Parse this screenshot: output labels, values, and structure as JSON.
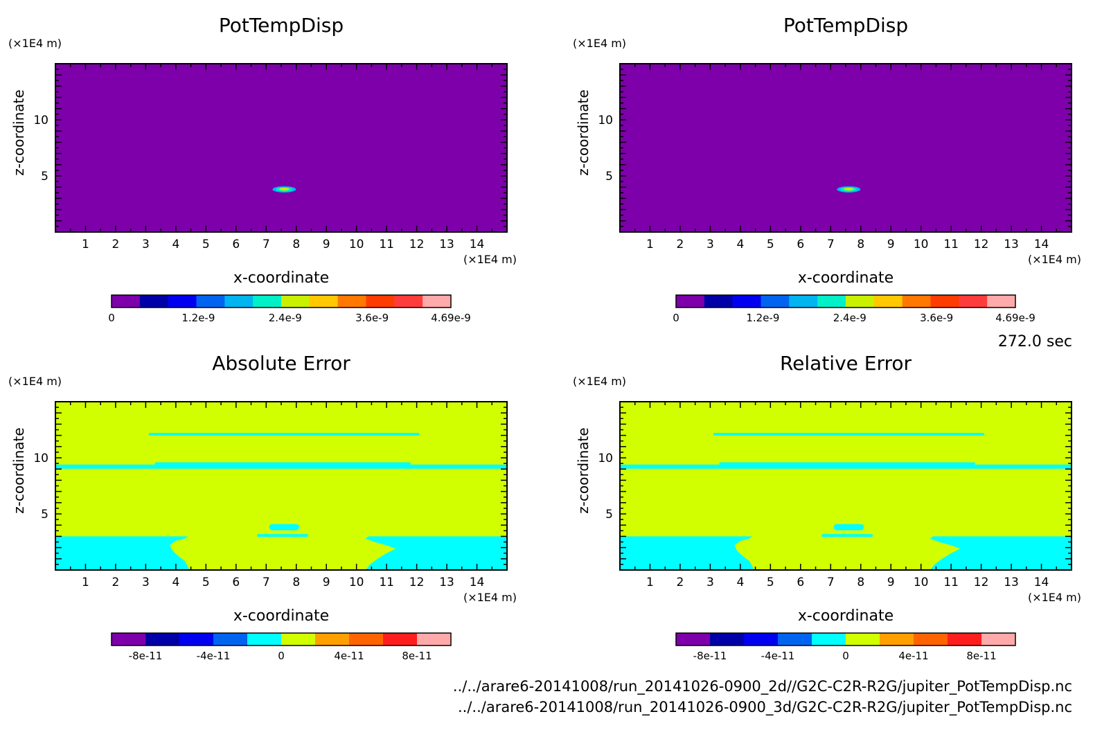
{
  "chart_data": [
    {
      "type": "heatmap",
      "title": "PotTempDisp",
      "xlabel": "x-coordinate",
      "ylabel": "z-coordinate",
      "x_unit": "(×1E4 m)",
      "y_unit": "(×1E4 m)",
      "xlim": [
        0,
        15
      ],
      "ylim": [
        0,
        15
      ],
      "x_ticks": [
        "1",
        "2",
        "3",
        "4",
        "5",
        "6",
        "7",
        "8",
        "9",
        "10",
        "11",
        "12",
        "13",
        "14"
      ],
      "y_ticks": [
        "5",
        "10"
      ],
      "background_value": 0,
      "features": [
        {
          "kind": "blob",
          "x": 7.6,
          "z": 3.8,
          "value_class": "mid"
        }
      ],
      "colorbar": {
        "colors": [
          "#7d00aa",
          "#0000a8",
          "#0000f0",
          "#0064f0",
          "#00b4f0",
          "#00f0c8",
          "#c8f000",
          "#ffc800",
          "#ff7800",
          "#ff3c00",
          "#ff3c3c",
          "#ffaaaa"
        ],
        "labels": [
          "0",
          "1.2e-9",
          "2.4e-9",
          "3.6e-9",
          "4.69e-9"
        ],
        "range": [
          0,
          4.69e-09
        ]
      }
    },
    {
      "type": "heatmap",
      "title": "PotTempDisp",
      "xlabel": "x-coordinate",
      "ylabel": "z-coordinate",
      "x_unit": "(×1E4 m)",
      "y_unit": "(×1E4 m)",
      "xlim": [
        0,
        15
      ],
      "ylim": [
        0,
        15
      ],
      "x_ticks": [
        "1",
        "2",
        "3",
        "4",
        "5",
        "6",
        "7",
        "8",
        "9",
        "10",
        "11",
        "12",
        "13",
        "14"
      ],
      "y_ticks": [
        "5",
        "10"
      ],
      "background_value": 0,
      "features": [
        {
          "kind": "blob",
          "x": 7.6,
          "z": 3.8,
          "value_class": "mid"
        }
      ],
      "colorbar": {
        "colors": [
          "#7d00aa",
          "#0000a8",
          "#0000f0",
          "#0064f0",
          "#00b4f0",
          "#00f0c8",
          "#c8f000",
          "#ffc800",
          "#ff7800",
          "#ff3c00",
          "#ff3c3c",
          "#ffaaaa"
        ],
        "labels": [
          "0",
          "1.2e-9",
          "2.4e-9",
          "3.6e-9",
          "4.69e-9"
        ],
        "range": [
          0,
          4.69e-09
        ]
      }
    },
    {
      "type": "heatmap",
      "title": "Absolute Error",
      "xlabel": "x-coordinate",
      "ylabel": "z-coordinate",
      "x_unit": "(×1E4 m)",
      "y_unit": "(×1E4 m)",
      "xlim": [
        0,
        15
      ],
      "ylim": [
        0,
        15
      ],
      "x_ticks": [
        "1",
        "2",
        "3",
        "4",
        "5",
        "6",
        "7",
        "8",
        "9",
        "10",
        "11",
        "12",
        "13",
        "14"
      ],
      "y_ticks": [
        "5",
        "10"
      ],
      "background_value": 0,
      "colorbar": {
        "colors": [
          "#7d00aa",
          "#0000a8",
          "#0000f0",
          "#0064f0",
          "#00ffff",
          "#d2ff00",
          "#ffa000",
          "#ff6400",
          "#ff1e1e",
          "#ffaaaa"
        ],
        "labels": [
          "-8e-11",
          "-4e-11",
          "0",
          "4e-11",
          "8e-11"
        ],
        "range": [
          -1e-10,
          1e-10
        ]
      }
    },
    {
      "type": "heatmap",
      "title": "Relative Error",
      "xlabel": "x-coordinate",
      "ylabel": "z-coordinate",
      "x_unit": "(×1E4 m)",
      "y_unit": "(×1E4 m)",
      "xlim": [
        0,
        15
      ],
      "ylim": [
        0,
        15
      ],
      "x_ticks": [
        "1",
        "2",
        "3",
        "4",
        "5",
        "6",
        "7",
        "8",
        "9",
        "10",
        "11",
        "12",
        "13",
        "14"
      ],
      "y_ticks": [
        "5",
        "10"
      ],
      "background_value": 0,
      "colorbar": {
        "colors": [
          "#7d00aa",
          "#0000a8",
          "#0000f0",
          "#0064f0",
          "#00ffff",
          "#d2ff00",
          "#ffa000",
          "#ff6400",
          "#ff1e1e",
          "#ffaaaa"
        ],
        "labels": [
          "-8e-11",
          "-4e-11",
          "0",
          "4e-11",
          "8e-11"
        ],
        "range": [
          -1e-10,
          1e-10
        ]
      }
    }
  ],
  "time_label": "272.0 sec",
  "file_paths": [
    "../../arare6-20141008/run_20141026-0900_2d//G2C-C2R-R2G/jupiter_PotTempDisp.nc",
    "../../arare6-20141008/run_20141026-0900_3d/G2C-C2R-R2G/jupiter_PotTempDisp.nc"
  ],
  "colors": {
    "background_purple": "#7d00aa",
    "error_field_lime": "#d2ff00",
    "error_band_cyan": "#00ffff"
  }
}
